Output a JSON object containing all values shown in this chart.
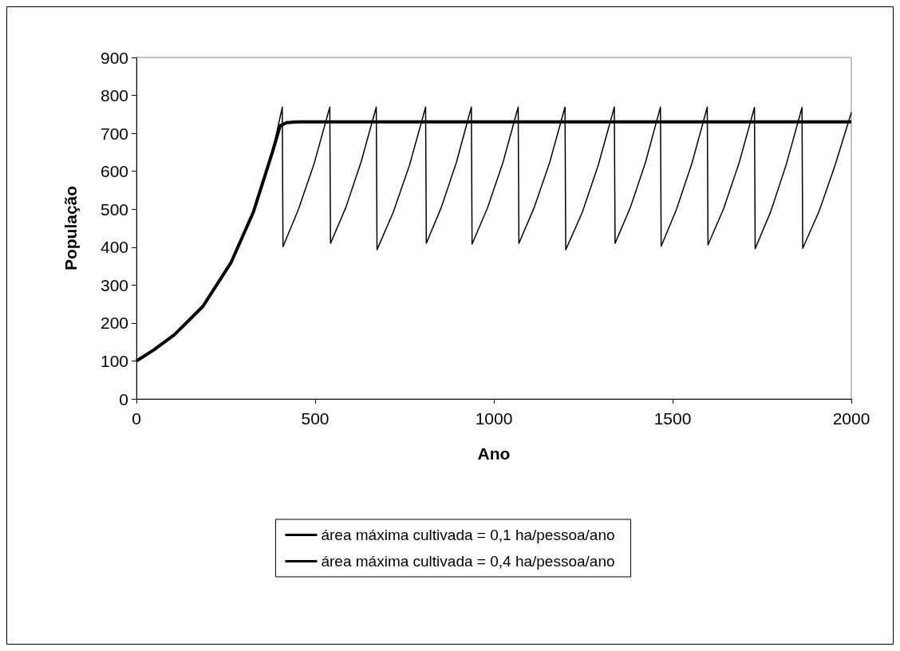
{
  "chart_data": {
    "type": "line",
    "xlabel": "Ano",
    "ylabel": "População",
    "xlim": [
      0,
      2000
    ],
    "xticks": [
      0,
      500,
      1000,
      1500,
      2000
    ],
    "ylim": [
      0,
      900
    ],
    "yticks": [
      0,
      100,
      200,
      300,
      400,
      500,
      600,
      700,
      800,
      900
    ],
    "grid": false,
    "legend": "bottom",
    "marker": "none",
    "line_style": "solid",
    "series": [
      {
        "name": "área máxima cultivada = 0,1 ha/pessoa/ano",
        "color": "#000000",
        "x": [
          0,
          50,
          106,
          186,
          265,
          327,
          380,
          402,
          420,
          450,
          2000
        ],
        "values": [
          100,
          130,
          169,
          244,
          360,
          492,
          649,
          720,
          728,
          730,
          730
        ]
      },
      {
        "name": "área máxima cultivada = 0,4 ha/pessoa/ano",
        "color": "#000000",
        "x": [
          0,
          50,
          106,
          186,
          265,
          327,
          380,
          408,
          410,
          453,
          497,
          541,
          543,
          586,
          628,
          671,
          673,
          718,
          764,
          809,
          811,
          853,
          895,
          937,
          939,
          982,
          1025,
          1068,
          1070,
          1113,
          1156,
          1199,
          1201,
          1247,
          1292,
          1337,
          1339,
          1382,
          1424,
          1466,
          1468,
          1511,
          1554,
          1597,
          1599,
          1643,
          1686,
          1729,
          1731,
          1775,
          1818,
          1862,
          1864,
          1910,
          1955,
          2000
        ],
        "values": [
          100,
          130,
          169,
          244,
          360,
          492,
          649,
          769,
          401,
          499,
          620,
          769,
          410,
          505,
          623,
          769,
          393,
          491,
          616,
          769,
          410,
          505,
          623,
          769,
          408,
          503,
          622,
          769,
          410,
          505,
          623,
          769,
          393,
          491,
          616,
          769,
          410,
          505,
          623,
          769,
          402,
          500,
          621,
          769,
          406,
          502,
          622,
          768,
          396,
          495,
          618,
          768,
          397,
          495,
          617,
          755
        ]
      }
    ]
  }
}
